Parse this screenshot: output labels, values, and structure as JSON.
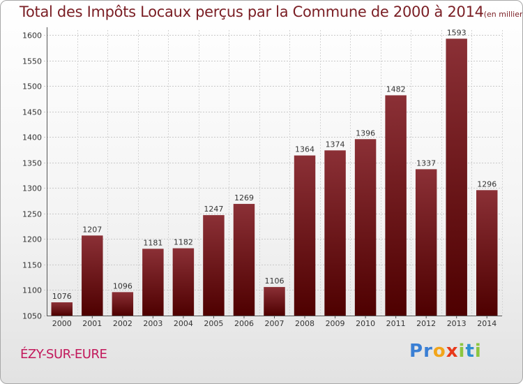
{
  "title": "Total des Impôts Locaux perçus par la Commune de 2000 à 2014",
  "title_unit": "(en milliers d'€)",
  "commune": "ÉZY-SUR-EURE",
  "logo": {
    "letters": [
      "P",
      "r",
      "o",
      "x",
      "i",
      "t",
      "i"
    ],
    "colors": [
      "#3a7fd4",
      "#3a7fd4",
      "#f2a51a",
      "#e8391b",
      "#8cc63f",
      "#2f8fd0",
      "#8cc63f"
    ]
  },
  "colors": {
    "bar_top": "#8b3036",
    "bar_bottom": "#4e0000",
    "title": "#7a1e24",
    "commune": "#c2185b"
  },
  "chart_data": {
    "type": "bar",
    "title": "Total des Impôts Locaux perçus par la Commune de 2000 à 2014",
    "xlabel": "",
    "ylabel": "",
    "ylim": [
      1050,
      1610
    ],
    "yticks": [
      1050,
      1100,
      1150,
      1200,
      1250,
      1300,
      1350,
      1400,
      1450,
      1500,
      1550,
      1600
    ],
    "grid": true,
    "categories": [
      "2000",
      "2001",
      "2002",
      "2003",
      "2004",
      "2005",
      "2006",
      "2007",
      "2008",
      "2009",
      "2010",
      "2011",
      "2012",
      "2013",
      "2014"
    ],
    "values": [
      1076,
      1207,
      1096,
      1181,
      1182,
      1247,
      1269,
      1106,
      1364,
      1374,
      1396,
      1482,
      1337,
      1593,
      1296
    ]
  }
}
